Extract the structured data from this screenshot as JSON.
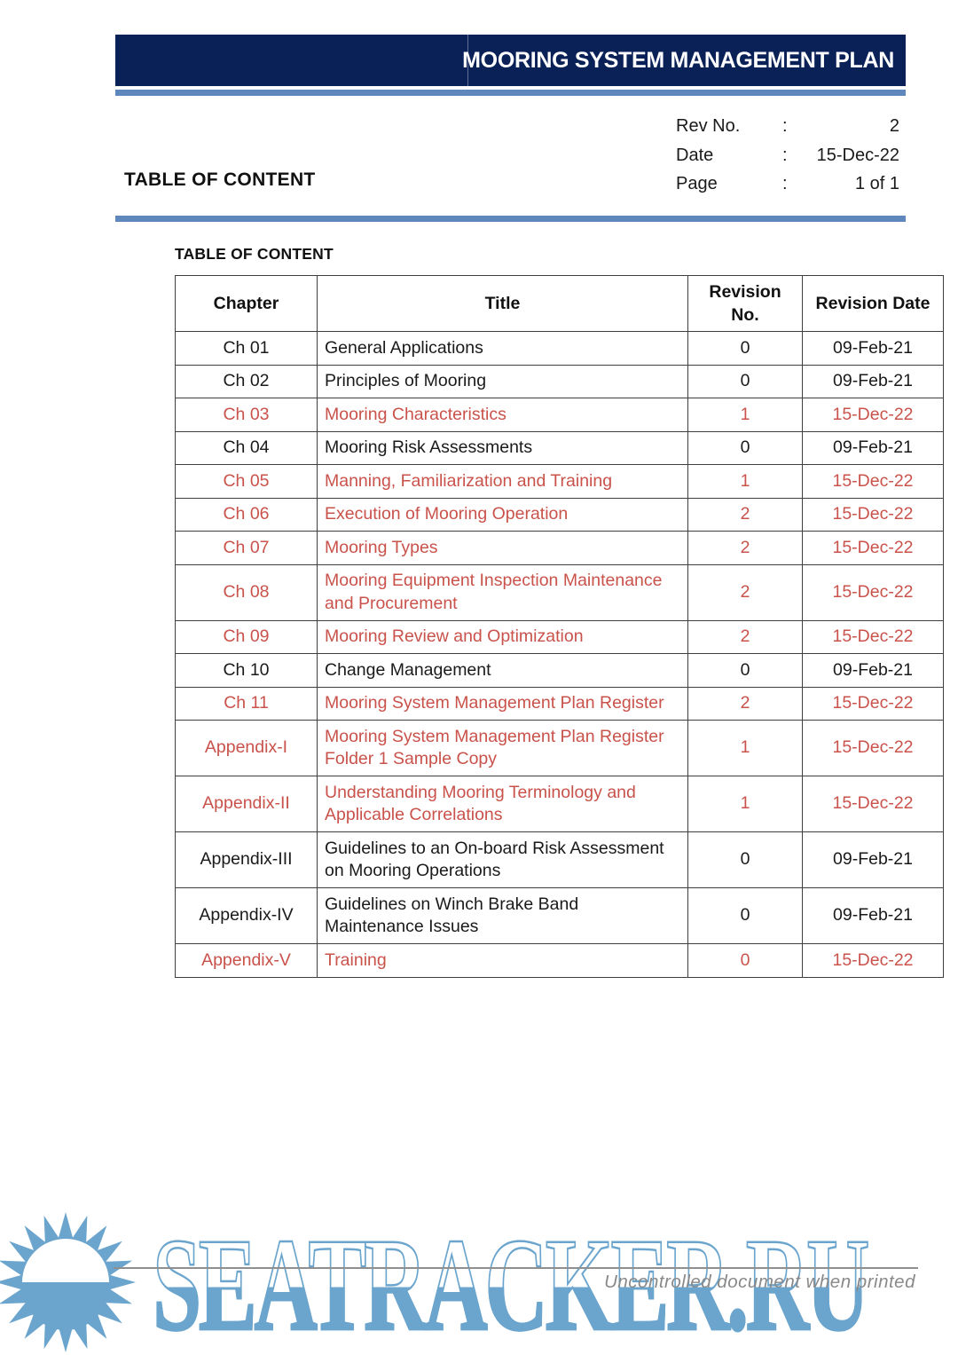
{
  "header": {
    "title": "MOORING SYSTEM MANAGEMENT PLAN",
    "section_title": "TABLE OF CONTENT",
    "meta": [
      {
        "label": "Rev No.",
        "sep": ":",
        "value": "2"
      },
      {
        "label": "Date",
        "sep": ":",
        "value": "15-Dec-22"
      },
      {
        "label": "Page",
        "sep": ":",
        "value": "1 of 1"
      }
    ]
  },
  "content": {
    "table_title": "TABLE OF CONTENT",
    "columns": [
      "Chapter",
      "Title",
      "Revision No.",
      "Revision Date"
    ],
    "rows": [
      {
        "chapter": "Ch 01",
        "title": "General Applications",
        "rev_no": "0",
        "rev_date": "09-Feb-21",
        "red": false
      },
      {
        "chapter": "Ch 02",
        "title": "Principles of Mooring",
        "rev_no": "0",
        "rev_date": "09-Feb-21",
        "red": false
      },
      {
        "chapter": "Ch 03",
        "title": "Mooring Characteristics",
        "rev_no": "1",
        "rev_date": "15-Dec-22",
        "red": true
      },
      {
        "chapter": "Ch 04",
        "title": "Mooring Risk Assessments",
        "rev_no": "0",
        "rev_date": "09-Feb-21",
        "red": false
      },
      {
        "chapter": "Ch 05",
        "title": "Manning, Familiarization and Training",
        "rev_no": "1",
        "rev_date": "15-Dec-22",
        "red": true
      },
      {
        "chapter": "Ch 06",
        "title": "Execution of Mooring Operation",
        "rev_no": "2",
        "rev_date": "15-Dec-22",
        "red": true
      },
      {
        "chapter": "Ch 07",
        "title": "Mooring Types",
        "rev_no": "2",
        "rev_date": "15-Dec-22",
        "red": true
      },
      {
        "chapter": "Ch 08",
        "title": "Mooring Equipment Inspection Maintenance and Procurement",
        "rev_no": "2",
        "rev_date": "15-Dec-22",
        "red": true
      },
      {
        "chapter": "Ch 09",
        "title": "Mooring Review and Optimization",
        "rev_no": "2",
        "rev_date": "15-Dec-22",
        "red": true
      },
      {
        "chapter": "Ch 10",
        "title": "Change Management",
        "rev_no": "0",
        "rev_date": "09-Feb-21",
        "red": false
      },
      {
        "chapter": "Ch 11",
        "title": "Mooring System Management Plan Register",
        "rev_no": "2",
        "rev_date": "15-Dec-22",
        "red": true
      },
      {
        "chapter": "Appendix-I",
        "title": "Mooring System Management Plan Register Folder 1 Sample Copy",
        "rev_no": "1",
        "rev_date": "15-Dec-22",
        "red": true
      },
      {
        "chapter": "Appendix-II",
        "title": "Understanding Mooring Terminology and Applicable Correlations",
        "rev_no": "1",
        "rev_date": "15-Dec-22",
        "red": true
      },
      {
        "chapter": "Appendix-III",
        "title": "Guidelines to an On-board Risk Assessment on Mooring Operations",
        "rev_no": "0",
        "rev_date": "09-Feb-21",
        "red": false
      },
      {
        "chapter": "Appendix-IV",
        "title": "Guidelines on Winch Brake Band Maintenance Issues",
        "rev_no": "0",
        "rev_date": "09-Feb-21",
        "red": false
      },
      {
        "chapter": "Appendix-V",
        "title": "Training",
        "rev_no": "0",
        "rev_date": "15-Dec-22",
        "red": true
      }
    ]
  },
  "footer": {
    "watermark": "SEATRACKER.RU",
    "note": "Uncontrolled document when printed",
    "sun_icon": "sun-logo-icon"
  },
  "colors": {
    "navy": "#0a2158",
    "accent_blue": "#5d87bd",
    "highlight_red": "#c9524b",
    "watermark_blue": "#6ba5cd",
    "footer_gray": "#898989"
  }
}
